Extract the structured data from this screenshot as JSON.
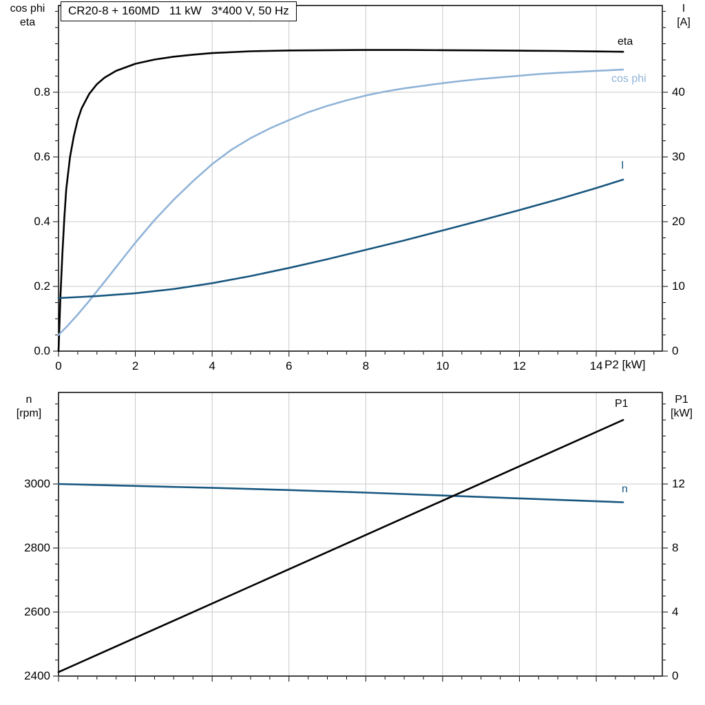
{
  "title_box": {
    "text": "CR20-8 + 160MD   11 kW   3*400 V, 50 Hz"
  },
  "colors": {
    "black": "#000000",
    "light_blue": "#8fb3d8",
    "dark_blue": "#17567f",
    "grid": "#c8c8c8",
    "frame": "#000000",
    "background": "#ffffff"
  },
  "chart_data": [
    {
      "type": "line",
      "title": "CR20-8 + 160MD   11 kW   3*400 V, 50 Hz",
      "x_axis": {
        "label": "P2 [kW]",
        "range": [
          0,
          15.72
        ],
        "major_ticks": [
          0,
          2,
          4,
          6,
          8,
          10,
          12,
          14
        ],
        "tick_labels": [
          "0",
          "2",
          "4",
          "6",
          "8",
          "10",
          "12",
          "14"
        ],
        "minor_step": 0.5,
        "show_tick_labels": true
      },
      "left_axis": {
        "label_lines": [
          "cos phi",
          "eta"
        ],
        "range": [
          0,
          1.068
        ],
        "major_ticks": [
          0,
          0.2,
          0.4,
          0.6,
          0.8
        ],
        "tick_labels": [
          "0.0",
          "0.2",
          "0.4",
          "0.6",
          "0.8"
        ],
        "minor_step": 0.05
      },
      "right_axis": {
        "label_lines": [
          "I",
          "[A]"
        ],
        "range": [
          0,
          53.4
        ],
        "major_ticks": [
          0,
          10,
          20,
          30,
          40
        ],
        "tick_labels": [
          "0",
          "10",
          "20",
          "30",
          "40"
        ],
        "minor_step": 2.5
      },
      "grid": true,
      "legend_position": "inline-labels",
      "series": [
        {
          "name": "eta",
          "label": "eta",
          "axis": "left",
          "color_key": "black",
          "points": [
            [
              0,
              0
            ],
            [
              0.05,
              0.17
            ],
            [
              0.1,
              0.3
            ],
            [
              0.15,
              0.41
            ],
            [
              0.2,
              0.5
            ],
            [
              0.3,
              0.6
            ],
            [
              0.4,
              0.665
            ],
            [
              0.5,
              0.715
            ],
            [
              0.6,
              0.75
            ],
            [
              0.8,
              0.795
            ],
            [
              1.0,
              0.825
            ],
            [
              1.2,
              0.845
            ],
            [
              1.5,
              0.866
            ],
            [
              2.0,
              0.888
            ],
            [
              2.5,
              0.901
            ],
            [
              3.0,
              0.91
            ],
            [
              3.5,
              0.916
            ],
            [
              4.0,
              0.921
            ],
            [
              5.0,
              0.9265
            ],
            [
              6.0,
              0.929
            ],
            [
              7.0,
              0.93
            ],
            [
              8.0,
              0.9305
            ],
            [
              9.0,
              0.9305
            ],
            [
              10.0,
              0.93
            ],
            [
              11.0,
              0.9293
            ],
            [
              12.0,
              0.9285
            ],
            [
              13.0,
              0.9275
            ],
            [
              14.0,
              0.9262
            ],
            [
              14.7,
              0.925
            ]
          ]
        },
        {
          "name": "cos phi",
          "label": "cos phi",
          "axis": "left",
          "color_key": "light_blue",
          "points": [
            [
              0,
              0.05
            ],
            [
              0.25,
              0.08
            ],
            [
              0.5,
              0.113
            ],
            [
              0.75,
              0.148
            ],
            [
              1.0,
              0.185
            ],
            [
              1.25,
              0.222
            ],
            [
              1.5,
              0.26
            ],
            [
              2.0,
              0.335
            ],
            [
              2.5,
              0.405
            ],
            [
              3.0,
              0.468
            ],
            [
              3.5,
              0.525
            ],
            [
              4.0,
              0.578
            ],
            [
              4.5,
              0.622
            ],
            [
              5.0,
              0.658
            ],
            [
              5.5,
              0.688
            ],
            [
              6.0,
              0.714
            ],
            [
              6.5,
              0.738
            ],
            [
              7.0,
              0.758
            ],
            [
              7.5,
              0.775
            ],
            [
              8.0,
              0.79
            ],
            [
              8.5,
              0.802
            ],
            [
              9.0,
              0.812
            ],
            [
              9.5,
              0.82
            ],
            [
              10.0,
              0.828
            ],
            [
              10.5,
              0.835
            ],
            [
              11.0,
              0.841
            ],
            [
              11.5,
              0.846
            ],
            [
              12.0,
              0.851
            ],
            [
              12.5,
              0.856
            ],
            [
              13.0,
              0.86
            ],
            [
              13.5,
              0.863
            ],
            [
              14.0,
              0.866
            ],
            [
              14.7,
              0.87
            ]
          ]
        },
        {
          "name": "I",
          "label": "I",
          "axis": "right",
          "color_key": "dark_blue",
          "points": [
            [
              0,
              8.2
            ],
            [
              1,
              8.5
            ],
            [
              2,
              8.95
            ],
            [
              3,
              9.6
            ],
            [
              4,
              10.5
            ],
            [
              5,
              11.6
            ],
            [
              6,
              12.85
            ],
            [
              7,
              14.2
            ],
            [
              8,
              15.65
            ],
            [
              9,
              17.1
            ],
            [
              10,
              18.65
            ],
            [
              11,
              20.2
            ],
            [
              12,
              21.8
            ],
            [
              13,
              23.45
            ],
            [
              14,
              25.2
            ],
            [
              14.7,
              26.5
            ]
          ]
        }
      ]
    },
    {
      "type": "line",
      "title": "",
      "x_axis": {
        "label": "",
        "range": [
          0,
          15.72
        ],
        "major_ticks": [
          0,
          2,
          4,
          6,
          8,
          10,
          12,
          14
        ],
        "tick_labels": [],
        "minor_step": 0.5,
        "show_tick_labels": false
      },
      "left_axis": {
        "label_lines": [
          "n",
          "[rpm]"
        ],
        "range": [
          2400,
          3286
        ],
        "major_ticks": [
          2400,
          2600,
          2800,
          3000
        ],
        "tick_labels": [
          "2400",
          "2600",
          "2800",
          "3000"
        ],
        "minor_step": 50
      },
      "right_axis": {
        "label_lines": [
          "P1",
          "[kW]"
        ],
        "range": [
          0,
          17.72
        ],
        "major_ticks": [
          0,
          4,
          8,
          12
        ],
        "tick_labels": [
          "0",
          "4",
          "8",
          "12"
        ],
        "minor_step": 1
      },
      "grid": true,
      "legend_position": "inline-labels",
      "series": [
        {
          "name": "n",
          "label": "n",
          "axis": "left",
          "color_key": "dark_blue",
          "points": [
            [
              0,
              3000
            ],
            [
              2,
              2994
            ],
            [
              4,
              2988
            ],
            [
              6,
              2981
            ],
            [
              8,
              2973
            ],
            [
              10,
              2964
            ],
            [
              12,
              2955
            ],
            [
              14,
              2946
            ],
            [
              14.7,
              2943
            ]
          ]
        },
        {
          "name": "P1",
          "label": "P1",
          "axis": "right",
          "color_key": "black",
          "points": [
            [
              0,
              0.25
            ],
            [
              7.35,
              8.12
            ],
            [
              14.7,
              16.0
            ]
          ]
        }
      ]
    }
  ]
}
